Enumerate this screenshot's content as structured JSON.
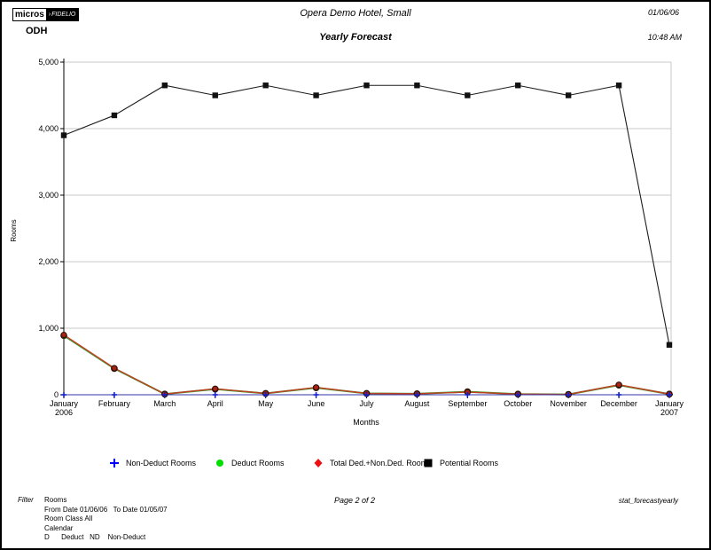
{
  "header": {
    "logo_micros": "micros",
    "logo_arrow": "›",
    "logo_fidelio": "FIDELIO",
    "hotel_code": "ODH",
    "title": "Opera Demo Hotel, Small",
    "subtitle": "Yearly Forecast",
    "date": "01/06/06",
    "time": "10:48 AM"
  },
  "chart_data": {
    "type": "line",
    "title": "Yearly Forecast",
    "xlabel": "Months",
    "ylabel": "Rooms",
    "ylim": [
      0,
      5000
    ],
    "yticks": [
      0,
      1000,
      2000,
      3000,
      4000,
      5000
    ],
    "ytick_labels": [
      "0",
      "1,000",
      "2,000",
      "3,000",
      "4,000",
      "5,000"
    ],
    "grid": true,
    "gridline_color": "#c9c9c9",
    "legend_position": "bottom",
    "categories": [
      "January",
      "February",
      "March",
      "April",
      "May",
      "June",
      "July",
      "August",
      "September",
      "October",
      "November",
      "December",
      "January"
    ],
    "category_sublabels": [
      "2006",
      "",
      "",
      "",
      "",
      "",
      "",
      "",
      "",
      "",
      "",
      "",
      "2007"
    ],
    "series": [
      {
        "name": "Non-Deduct Rooms",
        "values": [
          0,
          0,
          0,
          0,
          0,
          0,
          0,
          0,
          0,
          0,
          0,
          0,
          0
        ],
        "line_color": "#3333aa",
        "marker": "plus",
        "legend_marker": "plus",
        "marker_color": "#1122cc",
        "legend_color": "#0000ff"
      },
      {
        "name": "Deduct Rooms",
        "values": [
          890,
          395,
          10,
          85,
          20,
          105,
          20,
          15,
          45,
          10,
          5,
          145,
          10
        ],
        "line_color": "#33a033",
        "marker": "circle",
        "legend_marker": "circle",
        "marker_color": "#00cc00",
        "legend_color": "#00dd00"
      },
      {
        "name": "Total Ded.+Non.Ded. Rooms",
        "values": [
          900,
          400,
          10,
          90,
          20,
          110,
          20,
          15,
          40,
          10,
          5,
          150,
          10
        ],
        "line_color": "#bf4122",
        "marker": "circle",
        "legend_marker": "diamond",
        "marker_color": "#a82315",
        "legend_color": "#ee1111"
      },
      {
        "name": "Potential Rooms",
        "values": [
          3900,
          4200,
          4650,
          4500,
          4650,
          4500,
          4650,
          4650,
          4500,
          4650,
          4500,
          4650,
          750
        ],
        "line_color": "#1c1c1c",
        "marker": "square",
        "legend_marker": "square",
        "marker_color": "#111111",
        "legend_color": "#000000"
      }
    ]
  },
  "footer": {
    "filter_label": "Filter",
    "filter_lines": [
      "Rooms",
      "From Date 01/06/06   To Date 01/05/07",
      "Room Class All",
      "Calendar",
      "D      Deduct   ND    Non-Deduct"
    ],
    "page_info": "Page 2  of 2",
    "report_id": "stat_forecastyearly"
  }
}
